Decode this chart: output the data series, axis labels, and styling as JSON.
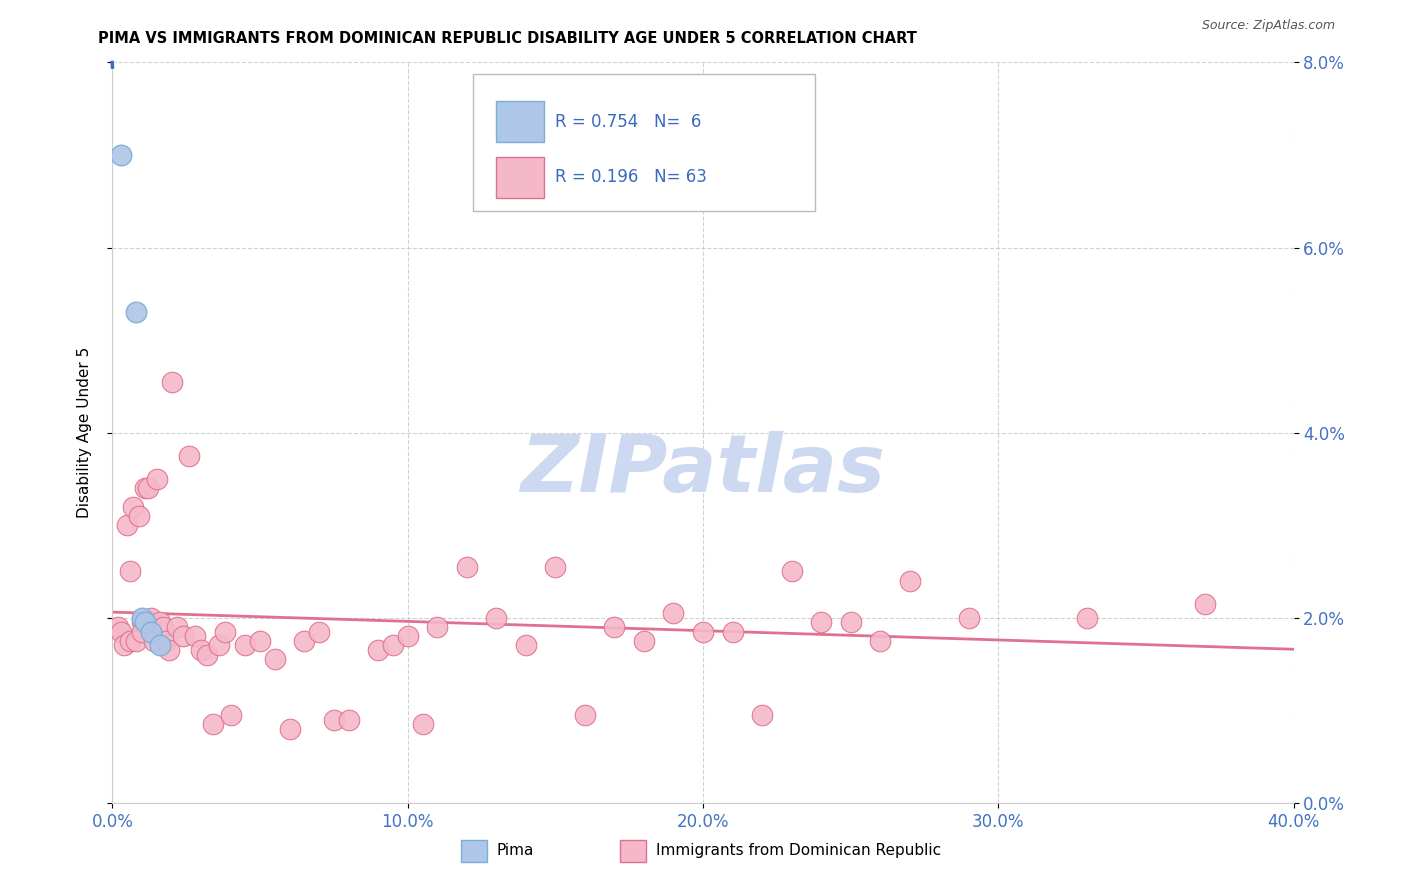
{
  "title": "PIMA VS IMMIGRANTS FROM DOMINICAN REPUBLIC DISABILITY AGE UNDER 5 CORRELATION CHART",
  "source": "Source: ZipAtlas.com",
  "xlabel_tick_vals": [
    0.0,
    0.1,
    0.2,
    0.3,
    0.4
  ],
  "ylabel_tick_vals": [
    0.0,
    0.02,
    0.04,
    0.06,
    0.08
  ],
  "ylabel": "Disability Age Under 5",
  "xlim": [
    0.0,
    0.4
  ],
  "ylim": [
    0.0,
    0.08
  ],
  "legend_label1": "Pima",
  "legend_label2": "Immigrants from Dominican Republic",
  "R1": 0.754,
  "N1": 6,
  "R2": 0.196,
  "N2": 63,
  "pima_color": "#aec6e8",
  "pima_edge_color": "#7aaed4",
  "pima_line_color": "#3a6abf",
  "dr_color": "#f4b8c8",
  "dr_edge_color": "#e07090",
  "dr_line_color": "#e07090",
  "pima_x": [
    0.003,
    0.008,
    0.01,
    0.011,
    0.013,
    0.016
  ],
  "pima_y": [
    0.07,
    0.053,
    0.02,
    0.0195,
    0.0185,
    0.017
  ],
  "dr_x": [
    0.002,
    0.003,
    0.004,
    0.005,
    0.006,
    0.006,
    0.007,
    0.008,
    0.009,
    0.01,
    0.01,
    0.011,
    0.012,
    0.013,
    0.014,
    0.015,
    0.016,
    0.017,
    0.018,
    0.019,
    0.02,
    0.022,
    0.024,
    0.026,
    0.028,
    0.03,
    0.032,
    0.034,
    0.036,
    0.038,
    0.04,
    0.045,
    0.05,
    0.055,
    0.06,
    0.065,
    0.07,
    0.075,
    0.08,
    0.09,
    0.095,
    0.1,
    0.105,
    0.11,
    0.12,
    0.13,
    0.14,
    0.15,
    0.16,
    0.17,
    0.18,
    0.19,
    0.2,
    0.21,
    0.22,
    0.23,
    0.24,
    0.25,
    0.26,
    0.27,
    0.29,
    0.33,
    0.37
  ],
  "dr_y": [
    0.019,
    0.0185,
    0.017,
    0.03,
    0.025,
    0.0175,
    0.032,
    0.0175,
    0.031,
    0.0195,
    0.0185,
    0.034,
    0.034,
    0.02,
    0.0175,
    0.035,
    0.0195,
    0.019,
    0.0175,
    0.0165,
    0.0455,
    0.019,
    0.018,
    0.0375,
    0.018,
    0.0165,
    0.016,
    0.0085,
    0.017,
    0.0185,
    0.0095,
    0.017,
    0.0175,
    0.0155,
    0.008,
    0.0175,
    0.0185,
    0.009,
    0.009,
    0.0165,
    0.017,
    0.018,
    0.0085,
    0.019,
    0.0255,
    0.02,
    0.017,
    0.0255,
    0.0095,
    0.019,
    0.0175,
    0.0205,
    0.0185,
    0.0185,
    0.0095,
    0.025,
    0.0195,
    0.0195,
    0.0175,
    0.024,
    0.02,
    0.02,
    0.0215
  ],
  "watermark_color": "#ccd9f0",
  "background_color": "#ffffff",
  "grid_color": "#cccccc"
}
